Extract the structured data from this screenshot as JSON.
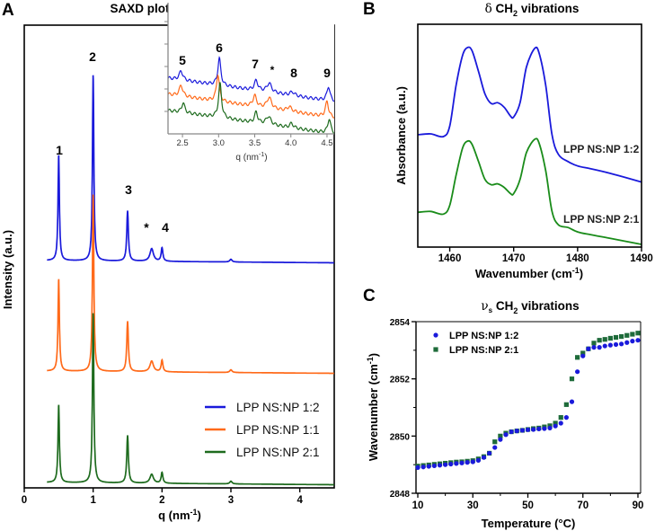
{
  "panels": {
    "A": {
      "letter": "A",
      "title": "SAXD plots of the models"
    },
    "B": {
      "letter": "B",
      "title_greek": "δ",
      "title_main": " CH",
      "title_sub": "2",
      "title_tail": " vibrations"
    },
    "C": {
      "letter": "C",
      "title_greek": "ν",
      "title_greek_sub": "s",
      "title_main": " CH",
      "title_sub": "2",
      "title_tail": " vibrations"
    }
  },
  "chart_data": [
    {
      "id": "A",
      "type": "line",
      "title": "SAXD plots of the models",
      "xlabel": "q (nm",
      "xlabel_sup": "-1",
      "xlabel_close": ")",
      "ylabel": "Intensity (a.u.)",
      "xlim": [
        0,
        4.5
      ],
      "ylim": [
        0,
        5.15
      ],
      "xticks": [
        0,
        1,
        2,
        3,
        4
      ],
      "xtick_labels": [
        "0",
        "1",
        "2",
        "3",
        "4"
      ],
      "legend": {
        "placement": "bottom-right",
        "entries": [
          "LPP NS:NP 1:2",
          "LPP NS:NP 1:1",
          "LPP NS:NP 2:1"
        ]
      },
      "peak_labels": [
        {
          "text": "1",
          "q": 0.5
        },
        {
          "text": "2",
          "q": 1.0
        },
        {
          "text": "3",
          "q": 1.5
        },
        {
          "text": "*",
          "q": 1.85
        },
        {
          "text": "4",
          "q": 2.0
        }
      ],
      "series": [
        {
          "name": "LPP NS:NP 1:2",
          "color": "#1a1adb",
          "q_start": 0.33,
          "baseline": 2.53,
          "peaks": [
            [
              0.5,
              1.18,
              0.012
            ],
            [
              1.0,
              2.08,
              0.012
            ],
            [
              1.5,
              0.56,
              0.014
            ],
            [
              1.85,
              0.14,
              0.03
            ],
            [
              2.0,
              0.15,
              0.015
            ],
            [
              3.0,
              0.03,
              0.02
            ]
          ]
        },
        {
          "name": "LPP NS:NP 1:1",
          "color": "#ff6a1a",
          "q_start": 0.33,
          "baseline": 1.3,
          "peaks": [
            [
              0.5,
              1.03,
              0.012
            ],
            [
              1.0,
              1.98,
              0.012
            ],
            [
              1.5,
              0.56,
              0.014
            ],
            [
              1.85,
              0.12,
              0.03
            ],
            [
              2.0,
              0.13,
              0.015
            ],
            [
              3.0,
              0.03,
              0.02
            ]
          ]
        },
        {
          "name": "LPP NS:NP 2:1",
          "color": "#1e6b1e",
          "q_start": 0.33,
          "baseline": 0.06,
          "peaks": [
            [
              0.5,
              0.87,
              0.012
            ],
            [
              1.0,
              1.9,
              0.012
            ],
            [
              1.5,
              0.53,
              0.014
            ],
            [
              1.85,
              0.1,
              0.03
            ],
            [
              2.0,
              0.12,
              0.015
            ],
            [
              3.0,
              0.03,
              0.02
            ]
          ]
        }
      ]
    },
    {
      "id": "A-inset",
      "type": "line",
      "xlabel": "q (nm",
      "xlabel_sup": "-1",
      "xlabel_close": ")",
      "xlim": [
        2.3,
        4.6
      ],
      "ylim": [
        0,
        14.6
      ],
      "xticks": [
        2.5,
        3.0,
        3.5,
        4.0,
        4.5
      ],
      "xtick_labels": [
        "2.5",
        "3.0",
        "3.5",
        "4.0",
        "4.5"
      ],
      "peak_labels": [
        {
          "text": "5",
          "q": 2.5
        },
        {
          "text": "6",
          "q": 3.0
        },
        {
          "text": "7",
          "q": 3.52
        },
        {
          "text": "*",
          "q": 3.7
        },
        {
          "text": "8",
          "q": 4.02
        },
        {
          "text": "9",
          "q": 4.52
        }
      ],
      "series": [
        {
          "name": "LPP NS:NP 1:2",
          "color": "#1a1adb",
          "baseline": [
            6.2,
            3.6
          ],
          "peaks": [
            [
              2.48,
              1.0,
              0.03
            ],
            [
              3.01,
              3.0,
              0.025
            ],
            [
              3.52,
              1.1,
              0.03
            ],
            [
              3.7,
              1.0,
              0.04
            ],
            [
              4.02,
              0.4,
              0.04
            ],
            [
              4.52,
              1.6,
              0.025
            ]
          ]
        },
        {
          "name": "LPP NS:NP 1:1",
          "color": "#ff6a1a",
          "baseline": [
            4.4,
            1.8
          ],
          "peaks": [
            [
              2.48,
              1.2,
              0.03
            ],
            [
              2.99,
              3.0,
              0.025
            ],
            [
              3.5,
              1.2,
              0.03
            ],
            [
              3.7,
              1.2,
              0.04
            ],
            [
              3.98,
              0.5,
              0.04
            ],
            [
              4.5,
              1.7,
              0.025
            ]
          ]
        },
        {
          "name": "LPP NS:NP 2:1",
          "color": "#1e6b1e",
          "baseline": [
            2.6,
            0.0
          ],
          "peaks": [
            [
              2.51,
              1.1,
              0.025
            ],
            [
              3.02,
              3.8,
              0.025
            ],
            [
              3.52,
              1.2,
              0.025
            ],
            [
              3.69,
              0.9,
              0.04
            ],
            [
              4.01,
              0.5,
              0.03
            ],
            [
              4.53,
              1.6,
              0.025
            ]
          ]
        }
      ]
    },
    {
      "id": "B",
      "type": "line",
      "title": "δ CH2 vibrations",
      "xlabel": "Wavenumber (cm",
      "xlabel_sup": "-1",
      "xlabel_close": ")",
      "ylabel": "Absorbance (a.u.)",
      "xlim": [
        1455,
        1490
      ],
      "ylim": [
        0,
        2.5
      ],
      "xticks": [
        1460,
        1470,
        1480,
        1490
      ],
      "xtick_labels": [
        "1460",
        "1470",
        "1480",
        "1490"
      ],
      "series": [
        {
          "name": "LPP NS:NP 1:2",
          "color": "#1a1adb",
          "x": [
            1455,
            1457,
            1459,
            1460,
            1461,
            1462,
            1462.8,
            1463.5,
            1464.5,
            1465.5,
            1466.5,
            1467.5,
            1468.5,
            1469.5,
            1470,
            1471,
            1472,
            1473.3,
            1474,
            1475,
            1476,
            1477,
            1478.5,
            1480,
            1482,
            1485,
            1490
          ],
          "y": [
            1.26,
            1.27,
            1.24,
            1.36,
            1.82,
            2.15,
            2.24,
            2.2,
            1.97,
            1.72,
            1.61,
            1.62,
            1.57,
            1.47,
            1.46,
            1.62,
            2.02,
            2.23,
            2.17,
            1.82,
            1.26,
            1.04,
            0.96,
            0.91,
            0.88,
            0.83,
            0.73
          ]
        },
        {
          "name": "LPP NS:NP 2:1",
          "color": "#1a8c1a",
          "x": [
            1455,
            1457,
            1459,
            1460,
            1461,
            1462,
            1462.8,
            1463.5,
            1464.5,
            1465.5,
            1466.5,
            1467.5,
            1468.5,
            1469.5,
            1470,
            1471,
            1472,
            1473.3,
            1474,
            1475,
            1476,
            1477,
            1478.5,
            1480,
            1482,
            1485,
            1490
          ],
          "y": [
            0.39,
            0.4,
            0.37,
            0.47,
            0.81,
            1.11,
            1.19,
            1.15,
            0.96,
            0.76,
            0.7,
            0.71,
            0.67,
            0.6,
            0.6,
            0.76,
            1.06,
            1.21,
            1.16,
            0.86,
            0.4,
            0.25,
            0.22,
            0.17,
            0.14,
            0.1,
            0.03
          ]
        }
      ]
    },
    {
      "id": "C",
      "type": "scatter",
      "title": "νs CH2 vibrations",
      "xlabel": "Temperature (°C)",
      "ylabel": "Wavenumber (cm",
      "ylabel_sup": "-1",
      "ylabel_close": ")",
      "xlim": [
        9.5,
        91.5
      ],
      "ylim": [
        2848,
        2854
      ],
      "xticks": [
        10,
        30,
        50,
        70,
        90
      ],
      "xtick_labels": [
        "10",
        "30",
        "50",
        "70",
        "90"
      ],
      "yticks": [
        2848,
        2850,
        2852,
        2854
      ],
      "ytick_labels": [
        "2848",
        "2850",
        "2852",
        "2854"
      ],
      "legend": {
        "placement": "top-left",
        "entries": [
          "LPP NS:NP 1:2",
          "LPP NS:NP 2:1"
        ]
      },
      "x": [
        10,
        12,
        14,
        16,
        18,
        20,
        22,
        24,
        26,
        28,
        30,
        32,
        34,
        36,
        38,
        40,
        42,
        44,
        46,
        48,
        50,
        52,
        54,
        56,
        58,
        60,
        62,
        64,
        66,
        68,
        70,
        72,
        74,
        76,
        78,
        80,
        82,
        84,
        86,
        88,
        90
      ],
      "series": [
        {
          "name": "LPP NS:NP 1:2",
          "color": "#1a1adb",
          "marker": "circle",
          "values": [
            2848.9,
            2848.92,
            2848.94,
            2848.96,
            2848.98,
            2849.0,
            2849.02,
            2849.04,
            2849.06,
            2849.08,
            2849.1,
            2849.15,
            2849.25,
            2849.4,
            2849.6,
            2849.88,
            2850.05,
            2850.15,
            2850.18,
            2850.2,
            2850.22,
            2850.23,
            2850.25,
            2850.26,
            2850.28,
            2850.35,
            2850.45,
            2850.65,
            2851.2,
            2852.25,
            2852.8,
            2853.05,
            2853.1,
            2853.1,
            2853.15,
            2853.18,
            2853.2,
            2853.22,
            2853.27,
            2853.32,
            2853.35
          ]
        },
        {
          "name": "LPP NS:NP 2:1",
          "color": "#1e6b3a",
          "marker": "square",
          "values": [
            2848.95,
            2848.97,
            2848.99,
            2849.01,
            2849.03,
            2849.05,
            2849.07,
            2849.09,
            2849.1,
            2849.12,
            2849.14,
            2849.2,
            2849.28,
            2849.4,
            2849.8,
            2850.0,
            2850.1,
            2850.15,
            2850.18,
            2850.2,
            2850.23,
            2850.26,
            2850.28,
            2850.32,
            2850.36,
            2850.45,
            2850.65,
            2851.1,
            2852.0,
            2852.75,
            2852.9,
            2853.05,
            2853.25,
            2853.35,
            2853.38,
            2853.42,
            2853.45,
            2853.48,
            2853.52,
            2853.56,
            2853.6
          ]
        }
      ]
    }
  ]
}
